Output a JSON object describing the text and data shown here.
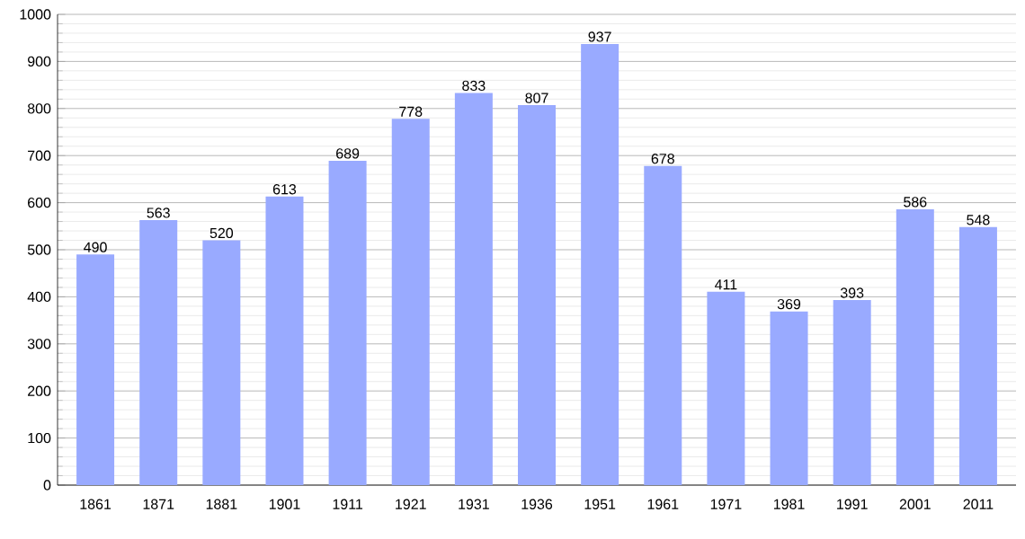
{
  "chart_data": {
    "type": "bar",
    "categories": [
      "1861",
      "1871",
      "1881",
      "1901",
      "1911",
      "1921",
      "1931",
      "1936",
      "1951",
      "1961",
      "1971",
      "1981",
      "1991",
      "2001",
      "2011"
    ],
    "values": [
      490,
      563,
      520,
      613,
      689,
      778,
      833,
      807,
      937,
      678,
      411,
      369,
      393,
      586,
      548
    ],
    "color": "#99aaff",
    "ylim": [
      0,
      1000
    ],
    "yticks": [
      0,
      100,
      200,
      300,
      400,
      500,
      600,
      700,
      800,
      900,
      1000
    ],
    "grid": "y",
    "data_labels": true
  }
}
